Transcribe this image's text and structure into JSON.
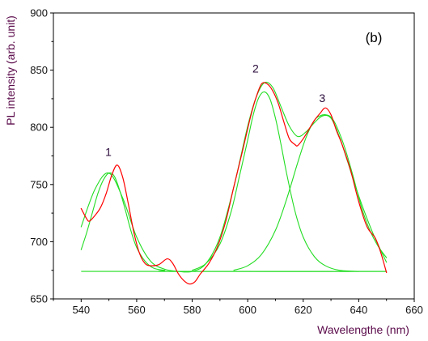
{
  "chart_data": {
    "type": "line",
    "title": "",
    "xlabel": "Wavelengthe (nm)",
    "ylabel": "PL intensity (arb. unit)",
    "xlim": [
      530,
      660
    ],
    "ylim": [
      650,
      900
    ],
    "xticks": [
      540,
      560,
      580,
      600,
      620,
      640,
      660
    ],
    "yticks": [
      650,
      700,
      750,
      800,
      850,
      900
    ],
    "grid": false,
    "panel_label": "(b)",
    "baseline": 674,
    "colors": {
      "measured": "#ff0000",
      "fit": "#22dd22",
      "axis": "#000000"
    },
    "series": [
      {
        "role": "measured",
        "x": [
          540,
          542,
          543,
          545,
          547,
          549,
          551,
          553,
          555,
          557,
          559,
          561,
          563,
          565,
          568,
          571,
          573,
          575,
          577,
          579,
          581,
          583,
          586,
          589,
          592,
          595,
          598,
          601,
          603,
          605,
          607,
          609,
          611,
          613,
          615,
          617,
          618,
          620,
          622,
          624,
          626,
          628,
          630,
          632,
          634,
          637,
          640,
          643,
          646,
          648,
          650
        ],
        "y": [
          729,
          720,
          718,
          723,
          730,
          742,
          758,
          767,
          756,
          733,
          708,
          690,
          681,
          679,
          680,
          685,
          681,
          672,
          666,
          663,
          665,
          672,
          681,
          695,
          717,
          748,
          778,
          809,
          826,
          838,
          838,
          832,
          821,
          805,
          790,
          785,
          784,
          790,
          798,
          806,
          812,
          817,
          811,
          797,
          785,
          763,
          735,
          713,
          703,
          690,
          673
        ]
      },
      {
        "role": "fit-envelope",
        "x": [
          540,
          545,
          550,
          555,
          560,
          565,
          570,
          575,
          580,
          585,
          590,
          595,
          600,
          603,
          606,
          609,
          612,
          615,
          618,
          621,
          624,
          627,
          630,
          633,
          636,
          640,
          645,
          650
        ],
        "y": [
          713,
          746,
          760,
          738,
          704,
          683,
          676,
          674,
          674,
          681,
          704,
          748,
          801,
          826,
          839,
          835,
          818,
          801,
          792,
          796,
          804,
          810,
          808,
          792,
          770,
          740,
          708,
          682
        ]
      },
      {
        "role": "fit-peak-1",
        "x": [
          540,
          542,
          544,
          546,
          548,
          550,
          552,
          554,
          556,
          558,
          560,
          563,
          566,
          570,
          575,
          650
        ],
        "y": [
          693,
          708,
          725,
          742,
          754,
          760,
          757,
          744,
          727,
          709,
          695,
          683,
          677,
          675,
          674,
          674
        ]
      },
      {
        "role": "fit-peak-2",
        "x": [
          580,
          585,
          590,
          594,
          597,
          600,
          602,
          604,
          606,
          608,
          610,
          612,
          614,
          617,
          620,
          624,
          628,
          633,
          640
        ],
        "y": [
          675,
          681,
          698,
          726,
          757,
          789,
          811,
          826,
          831,
          825,
          808,
          785,
          760,
          727,
          704,
          687,
          679,
          675,
          674
        ]
      },
      {
        "role": "fit-peak-3",
        "x": [
          595,
          600,
          605,
          610,
          614,
          618,
          621,
          624,
          626,
          628,
          630,
          632,
          635,
          638,
          641,
          644,
          647,
          650
        ],
        "y": [
          675,
          679,
          689,
          710,
          737,
          769,
          791,
          806,
          810,
          811,
          809,
          801,
          782,
          757,
          730,
          710,
          696,
          686
        ]
      }
    ],
    "annotations": [
      {
        "text": "1",
        "x": 551,
        "y": 775
      },
      {
        "text": "2",
        "x": 604,
        "y": 848
      },
      {
        "text": "3",
        "x": 628,
        "y": 822
      }
    ]
  }
}
